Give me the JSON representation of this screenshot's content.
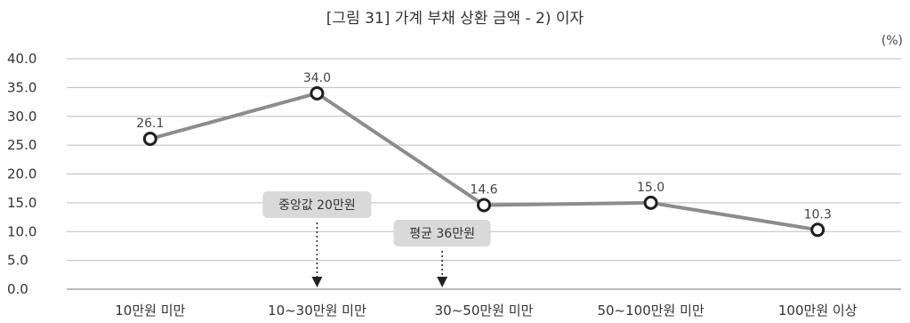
{
  "chart_data": {
    "type": "line",
    "title": "[그림 31] 가계 부채 상환 금액 - 2) 이자",
    "unit": "(%)",
    "categories": [
      "10만원 미만",
      "10~30만원 미만",
      "30~50만원 미만",
      "50~100만원 미만",
      "100만원 이상"
    ],
    "values": [
      26.1,
      34.0,
      14.6,
      15.0,
      10.3
    ],
    "value_labels": [
      "26.1",
      "34.0",
      "14.6",
      "15.0",
      "10.3"
    ],
    "yticks": [
      "0.0",
      "5.0",
      "10.0",
      "15.0",
      "20.0",
      "25.0",
      "30.0",
      "35.0",
      "40.0"
    ],
    "ylim": [
      0,
      40
    ],
    "grid": true,
    "line_color": "#8c8c8c",
    "annotations": [
      {
        "text": "중앙값 20만원",
        "category_index": 1
      },
      {
        "text": "평균 36만원",
        "category_index": 1.75
      }
    ]
  }
}
